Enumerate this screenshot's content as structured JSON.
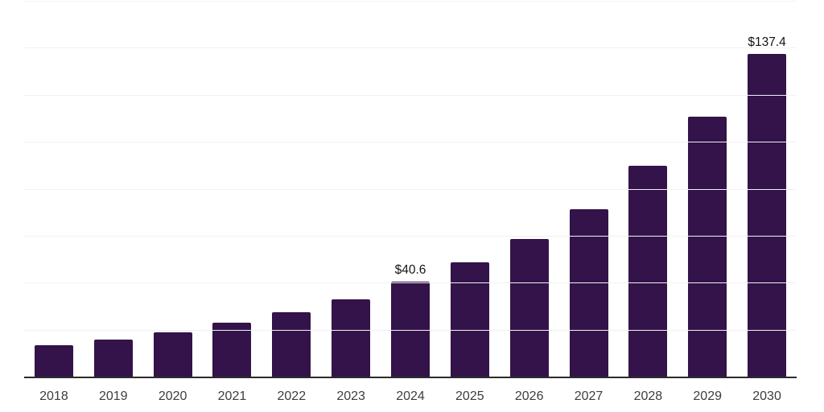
{
  "chart_data": {
    "type": "bar",
    "title": "",
    "xlabel": "",
    "ylabel": "",
    "categories": [
      "2018",
      "2019",
      "2020",
      "2021",
      "2022",
      "2023",
      "2024",
      "2025",
      "2026",
      "2027",
      "2028",
      "2029",
      "2030"
    ],
    "values": [
      13.4,
      15.9,
      19.0,
      22.9,
      27.5,
      32.9,
      40.6,
      48.8,
      58.7,
      71.2,
      89.9,
      110.8,
      137.4
    ],
    "data_labels": {
      "2024": "$40.6",
      "2030": "$137.4"
    },
    "ylim": [
      0,
      160
    ],
    "grid_step": 20,
    "grid": "horizontal-only",
    "legend": "none",
    "y_axis_ticks_visible": false,
    "colors": {
      "bar": "#331349",
      "axis_line": "#2b2b2b",
      "gridline": "#f1f1f1",
      "tick_label": "#3d3d3d",
      "data_label": "#141414",
      "background": "#ffffff"
    }
  }
}
